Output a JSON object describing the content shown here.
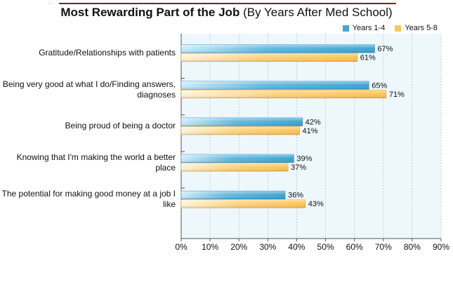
{
  "chart_data": {
    "type": "bar",
    "orientation": "horizontal",
    "title": "Most Rewarding Part of the Job",
    "subtitle": "(By Years After Med School)",
    "categories": [
      "Gratitude/Relationships with patients",
      "Being very good at what I do/Finding answers, diagnoses",
      "Being proud of being a doctor",
      "Knowing that I'm making the world a better place",
      "The potential for making good money at a job I like"
    ],
    "series": [
      {
        "name": "Years 1-4",
        "values": [
          67,
          65,
          42,
          39,
          36
        ],
        "color": "#3fa9d6"
      },
      {
        "name": "Years 5-8",
        "values": [
          61,
          71,
          41,
          37,
          43
        ],
        "color": "#ffc658"
      }
    ],
    "value_labels": {
      "Years 1-4": [
        "67%",
        "65%",
        "42%",
        "39%",
        "36%"
      ],
      "Years 5-8": [
        "61%",
        "71%",
        "41%",
        "37%",
        "43%"
      ]
    },
    "xlim": [
      0,
      90
    ],
    "xticks": [
      "0%",
      "10%",
      "20%",
      "30%",
      "40%",
      "50%",
      "60%",
      "70%",
      "80%",
      "90%"
    ],
    "grid": true,
    "legend_position": "top-right",
    "plot_background": "#eef7fc"
  }
}
